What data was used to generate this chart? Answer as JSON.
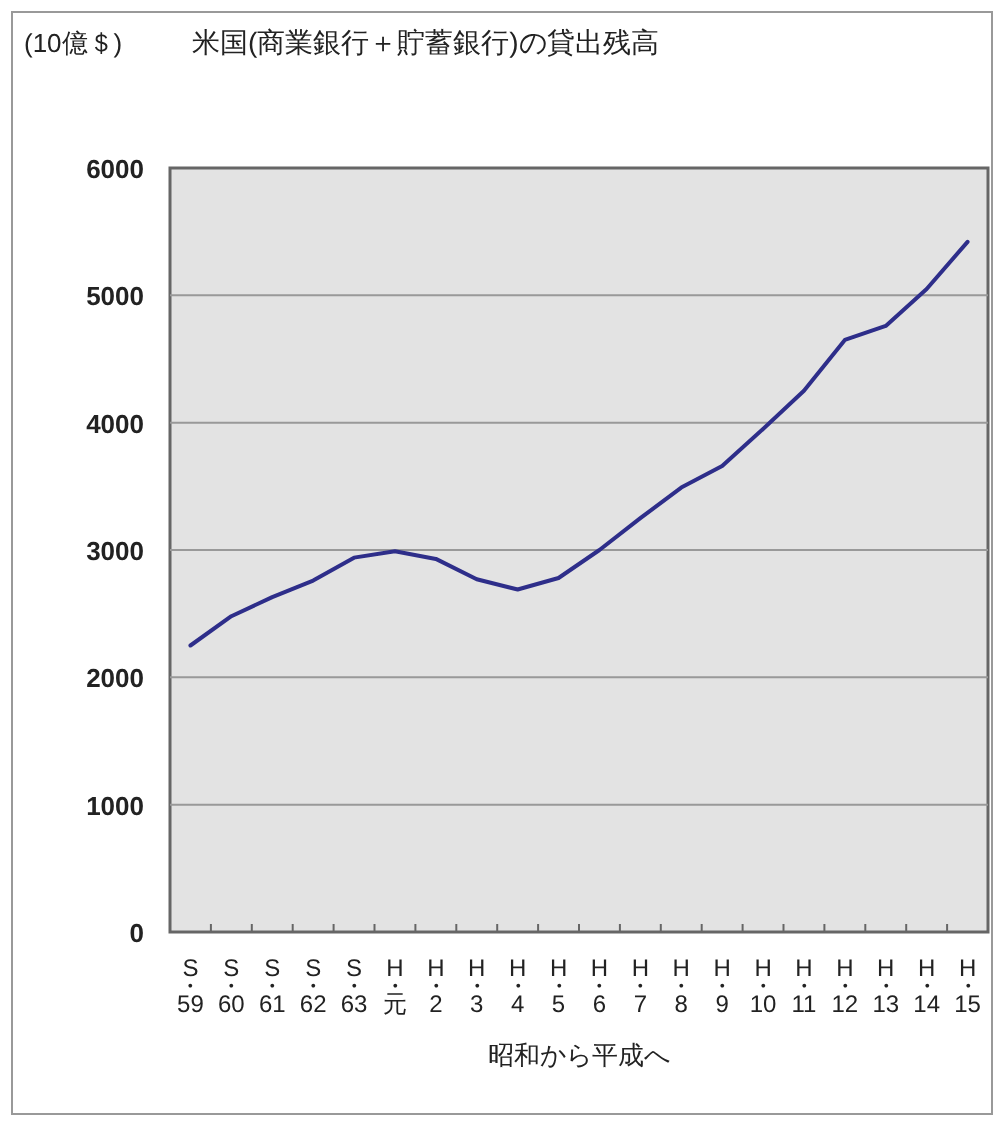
{
  "chart_data": {
    "type": "line",
    "title": "米国(商業銀行＋貯蓄銀行)の貸出残高",
    "ylabel": "(10億＄)",
    "xlabel": "昭和から平成へ",
    "categories": [
      "S・59",
      "S・60",
      "S・61",
      "S・62",
      "S・63",
      "H・元",
      "H・2",
      "H・3",
      "H・4",
      "H・5",
      "H・6",
      "H・7",
      "H・8",
      "H・9",
      "H・10",
      "H・11",
      "H・12",
      "H・13",
      "H・14",
      "H・15"
    ],
    "series": [
      {
        "color": "#2e2e8a",
        "values": [
          2250,
          2480,
          2630,
          2760,
          2940,
          2990,
          2930,
          2770,
          2690,
          2780,
          3000,
          3250,
          3490,
          3660,
          3950,
          4250,
          4650,
          4760,
          5050,
          5420
        ]
      }
    ],
    "ylim": [
      0,
      6000
    ],
    "yticks": [
      0,
      1000,
      2000,
      3000,
      4000,
      5000,
      6000
    ],
    "grid": "y",
    "marker": "none",
    "line_style": "solid"
  }
}
